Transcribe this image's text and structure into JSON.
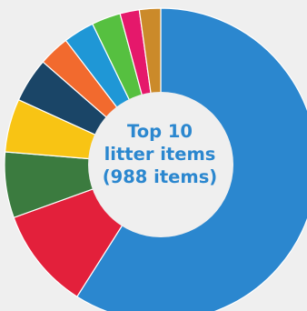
{
  "chart_data": {
    "type": "pie",
    "style": "donut",
    "center_text": [
      "Top 10",
      "litter items",
      "(988 items)"
    ],
    "start_angle_deg": 0,
    "direction": "clockwise",
    "slices": [
      {
        "value": 59.0,
        "color": "#2b87cf"
      },
      {
        "value": 10.5,
        "color": "#e3203b"
      },
      {
        "value": 6.8,
        "color": "#3b7b3f"
      },
      {
        "value": 5.5,
        "color": "#f8c414"
      },
      {
        "value": 4.6,
        "color": "#1a4567"
      },
      {
        "value": 3.2,
        "color": "#f26a2e"
      },
      {
        "value": 3.2,
        "color": "#1f97d6"
      },
      {
        "value": 3.0,
        "color": "#56c040"
      },
      {
        "value": 2.0,
        "color": "#e5186b"
      },
      {
        "value": 2.2,
        "color": "#cb8a2a"
      }
    ]
  }
}
